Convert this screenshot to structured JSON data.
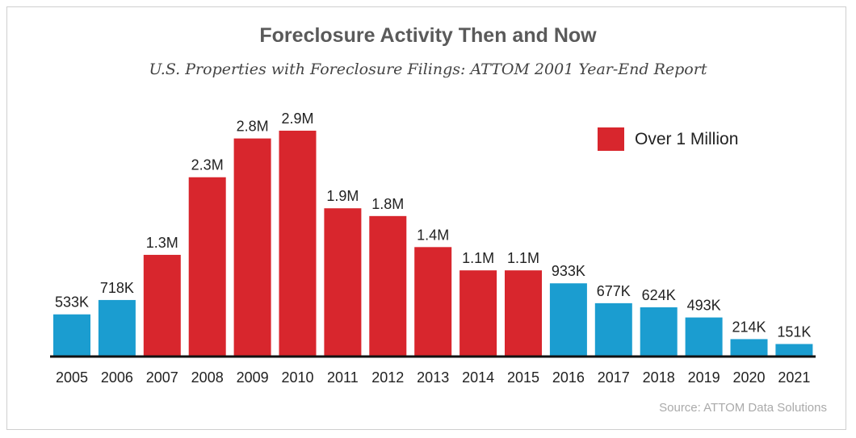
{
  "chart_data": {
    "type": "bar",
    "title": "Foreclosure Activity Then and Now",
    "subtitle": "U.S. Properties with Foreclosure Filings: ATTOM 2001 Year-End Report",
    "xlabel": "",
    "ylabel": "",
    "ylim": [
      0,
      3000000
    ],
    "grid": false,
    "categories": [
      "2005",
      "2006",
      "2007",
      "2008",
      "2009",
      "2010",
      "2011",
      "2012",
      "2013",
      "2014",
      "2015",
      "2016",
      "2017",
      "2018",
      "2019",
      "2020",
      "2021"
    ],
    "values": [
      533000,
      718000,
      1300000,
      2300000,
      2800000,
      2900000,
      1900000,
      1800000,
      1400000,
      1100000,
      1100000,
      933000,
      677000,
      624000,
      493000,
      214000,
      151000
    ],
    "labels": [
      "533K",
      "718K",
      "1.3M",
      "2.3M",
      "2.8M",
      "2.9M",
      "1.9M",
      "1.8M",
      "1.4M",
      "1.1M",
      "1.1M",
      "933K",
      "677K",
      "624K",
      "493K",
      "214K",
      "151K"
    ],
    "legend": {
      "label": "Over 1 Million",
      "placement": "top-right"
    },
    "threshold": 1000000,
    "colors": {
      "over": "#d8262d",
      "under": "#1b9dd0"
    },
    "source": "Source: ATTOM Data Solutions"
  }
}
